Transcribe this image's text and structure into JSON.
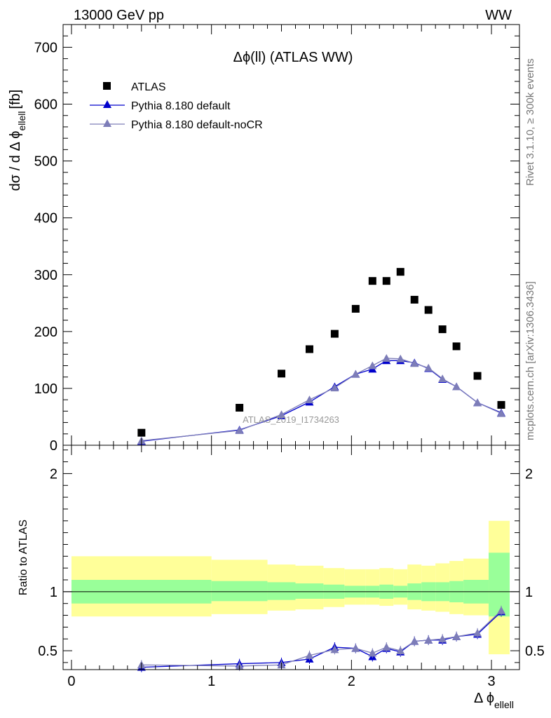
{
  "header": {
    "left": "13000 GeV pp",
    "right": "WW"
  },
  "side_text": {
    "rivet": "Rivet 3.1.10, ≥ 300k events",
    "mcplots": "mcplots.cern.ch [arXiv:1306.3436]"
  },
  "watermark": "ATLAS_2019_I1734263",
  "chart_data": [
    {
      "type": "scatter",
      "title": "Δϕ(ll) (ATLAS WW)",
      "ylabel_main": "dσ / d Δ ϕ",
      "ylabel_sub": "ellell",
      "ylabel_unit": "[fb]",
      "ylim": [
        0,
        740
      ],
      "xlim": [
        -0.06,
        3.2
      ],
      "yticks": [
        0,
        100,
        200,
        300,
        400,
        500,
        600,
        700
      ],
      "ytick_labels": [
        "0",
        "100",
        "200",
        "300",
        "400",
        "500",
        "600",
        "700"
      ],
      "legend": [
        "ATLAS",
        "Pythia 8.180 default",
        "Pythia 8.180 default-noCR"
      ],
      "series": [
        {
          "name": "ATLAS",
          "color": "#000000",
          "marker": "square",
          "x": [
            0.5,
            1.2,
            1.5,
            1.7,
            1.88,
            2.03,
            2.15,
            2.25,
            2.35,
            2.45,
            2.55,
            2.65,
            2.75,
            2.9,
            3.07
          ],
          "y": [
            22,
            66,
            126,
            169,
            196,
            240,
            289,
            289,
            305,
            256,
            238,
            204,
            174,
            122,
            71
          ]
        },
        {
          "name": "Pythia 8.180 default",
          "color": "#0000cc",
          "marker": "triangle",
          "x": [
            0.5,
            1.2,
            1.5,
            1.7,
            1.88,
            2.03,
            2.15,
            2.25,
            2.35,
            2.45,
            2.55,
            2.65,
            2.75,
            2.9,
            3.07
          ],
          "y": [
            7,
            27,
            52,
            76,
            103,
            125,
            134,
            149,
            149,
            145,
            135,
            116,
            103,
            75,
            57
          ]
        },
        {
          "name": "Pythia 8.180 default-noCR",
          "color": "#7d7db8",
          "marker": "triangle",
          "x": [
            0.5,
            1.2,
            1.5,
            1.7,
            1.88,
            2.03,
            2.15,
            2.25,
            2.35,
            2.45,
            2.55,
            2.65,
            2.75,
            2.9,
            3.07
          ],
          "y": [
            8,
            26,
            54,
            80,
            101,
            125,
            140,
            153,
            152,
            144,
            136,
            117,
            103,
            75,
            56
          ]
        }
      ]
    },
    {
      "type": "line",
      "ylabel": "Ratio to ATLAS",
      "xlabel_main": "Δ ϕ",
      "xlabel_sub": "ellell",
      "ylim": [
        0.34,
        2.24
      ],
      "xlim": [
        -0.06,
        3.2
      ],
      "yticks": [
        0.5,
        1,
        2
      ],
      "ytick_labels": [
        "0.5",
        "1",
        "2"
      ],
      "xticks": [
        0,
        1,
        2,
        3
      ],
      "xtick_labels": [
        "0",
        "1",
        "2",
        "3"
      ],
      "reference": 1,
      "uncertainty_bands": {
        "edges": [
          0,
          1,
          1.4,
          1.6,
          1.8,
          1.95,
          2.1,
          2.2,
          2.3,
          2.4,
          2.5,
          2.6,
          2.7,
          2.8,
          2.98,
          3.13
        ],
        "green_low": [
          0.9,
          0.92,
          0.93,
          0.94,
          0.94,
          0.95,
          0.95,
          0.94,
          0.95,
          0.93,
          0.92,
          0.92,
          0.91,
          0.9,
          0.79
        ],
        "green_high": [
          1.1,
          1.09,
          1.08,
          1.07,
          1.06,
          1.05,
          1.05,
          1.06,
          1.05,
          1.07,
          1.08,
          1.08,
          1.09,
          1.1,
          1.33
        ],
        "yellow_low": [
          0.79,
          0.81,
          0.84,
          0.85,
          0.87,
          0.89,
          0.89,
          0.88,
          0.89,
          0.85,
          0.84,
          0.83,
          0.81,
          0.8,
          0.47
        ],
        "yellow_high": [
          1.3,
          1.27,
          1.23,
          1.22,
          1.2,
          1.19,
          1.19,
          1.2,
          1.19,
          1.23,
          1.22,
          1.24,
          1.26,
          1.28,
          1.6
        ],
        "green_color": "#99ff99",
        "yellow_color": "#ffff99"
      },
      "series": [
        {
          "name": "Pythia 8.180 default",
          "color": "#0000cc",
          "x": [
            0.5,
            1.2,
            1.5,
            1.7,
            1.88,
            2.03,
            2.15,
            2.25,
            2.35,
            2.45,
            2.55,
            2.65,
            2.75,
            2.9,
            3.07
          ],
          "y": [
            0.36,
            0.39,
            0.4,
            0.43,
            0.53,
            0.52,
            0.45,
            0.52,
            0.49,
            0.58,
            0.59,
            0.59,
            0.62,
            0.64,
            0.83
          ]
        },
        {
          "name": "Pythia 8.180 default-noCR",
          "color": "#7d7db8",
          "x": [
            0.5,
            1.2,
            1.5,
            1.7,
            1.88,
            2.03,
            2.15,
            2.25,
            2.35,
            2.45,
            2.55,
            2.65,
            2.75,
            2.9,
            3.07
          ],
          "y": [
            0.38,
            0.37,
            0.38,
            0.46,
            0.51,
            0.52,
            0.48,
            0.53,
            0.5,
            0.58,
            0.59,
            0.6,
            0.62,
            0.65,
            0.84
          ]
        }
      ]
    }
  ]
}
